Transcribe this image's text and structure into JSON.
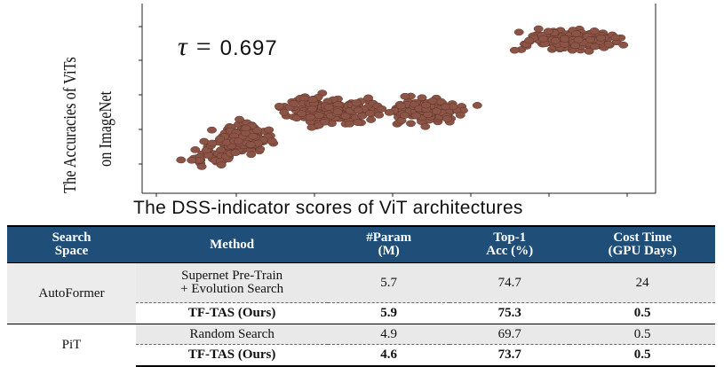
{
  "chart_data": {
    "type": "scatter",
    "title": "",
    "annotation": {
      "symbol": "τ",
      "equals": "=",
      "value": "0.697"
    },
    "xlabel": "The DSS-indicator scores of ViT architectures",
    "ylabel_line1": "The Accuracies of ViTs",
    "ylabel_line2": "on ImageNet",
    "xlim": [
      0,
      10
    ],
    "ylim": [
      0,
      10
    ],
    "grid": false,
    "marker_color": "#8b5446",
    "marker_stroke": "#5e3328",
    "clusters": [
      {
        "cx": 1.1,
        "cy": 1.7,
        "sx": 0.45,
        "sy": 0.7,
        "n": 40,
        "seed": 11
      },
      {
        "cx": 1.7,
        "cy": 2.6,
        "sx": 0.5,
        "sy": 0.7,
        "n": 140,
        "seed": 23
      },
      {
        "cx": 3.5,
        "cy": 4.3,
        "sx": 0.75,
        "sy": 0.75,
        "n": 170,
        "seed": 37
      },
      {
        "cx": 5.5,
        "cy": 4.3,
        "sx": 0.75,
        "sy": 0.6,
        "n": 190,
        "seed": 53
      },
      {
        "cx": 8.6,
        "cy": 8.4,
        "sx": 0.9,
        "sy": 0.5,
        "n": 230,
        "seed": 71
      }
    ]
  },
  "table": {
    "headers": [
      [
        "Search",
        "Space"
      ],
      [
        "Method"
      ],
      [
        "#Param",
        "(M)"
      ],
      [
        "Top-1",
        "Acc (%)"
      ],
      [
        "Cost Time",
        "(GPU Days)"
      ]
    ],
    "rows": [
      {
        "space": "AutoFormer",
        "method_l1": "Supernet Pre-Train",
        "method_l2": "+ Evolution Search",
        "param": "5.7",
        "acc": "74.7",
        "cost": "24"
      },
      {
        "space": "",
        "method": "TF-TAS (Ours)",
        "param": "5.9",
        "acc": "75.3",
        "cost": "0.5"
      },
      {
        "space": "PiT",
        "method": "Random Search",
        "param": "4.9",
        "acc": "69.7",
        "cost": "0.5"
      },
      {
        "space": "",
        "method": "TF-TAS (Ours)",
        "param": "4.6",
        "acc": "73.7",
        "cost": "0.5"
      }
    ]
  }
}
